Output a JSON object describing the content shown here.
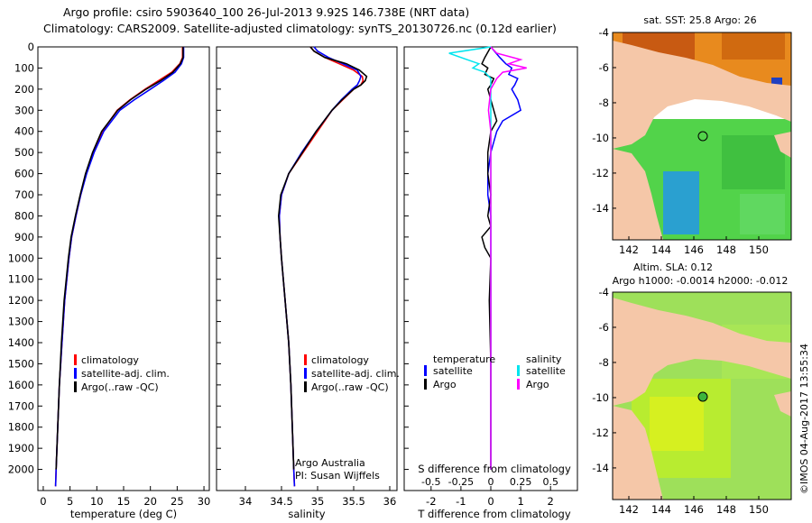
{
  "header": {
    "line1": "Argo profile: csiro 5903640_100 26-Jul-2013 9.92S 146.738E (NRT data)",
    "line2": "Climatology: CARS2009. Satellite-adjusted climatology: synTS_20130726.nc (0.12d earlier)"
  },
  "colors": {
    "climatology": "#ff0000",
    "satellite": "#0000ff",
    "argo": "#000000",
    "sal_satellite": "#00e5ee",
    "sal_argo": "#ff00ff",
    "land": "#f5c7a8",
    "grid": "#000000"
  },
  "chart_data": [
    {
      "type": "line",
      "title": "",
      "xlabel": "temperature (deg C)",
      "ylabel": "",
      "xlim": [
        -1,
        31
      ],
      "ylim": [
        0,
        2100
      ],
      "xticks": [
        "0",
        "5",
        "10",
        "15",
        "20",
        "25",
        "30"
      ],
      "yticks": [
        "0",
        "100",
        "200",
        "300",
        "400",
        "500",
        "600",
        "700",
        "800",
        "900",
        "1000",
        "1100",
        "1200",
        "1300",
        "1400",
        "1500",
        "1600",
        "1700",
        "1800",
        "1900",
        "2000"
      ],
      "legend": [
        "climatology",
        "satellite-adj. clim.",
        "Argo(..raw -QC)"
      ],
      "series": [
        {
          "name": "climatology",
          "depth": [
            0,
            50,
            80,
            120,
            160,
            200,
            250,
            300,
            400,
            500,
            600,
            700,
            800,
            900,
            1000,
            1200,
            1400,
            1600,
            1800,
            2000,
            2080
          ],
          "values": [
            26.0,
            26.0,
            25.5,
            24.0,
            21.5,
            19.0,
            16.2,
            13.8,
            11.0,
            9.4,
            8.0,
            7.0,
            6.1,
            5.3,
            4.8,
            4.0,
            3.5,
            3.0,
            2.7,
            2.4,
            2.3
          ]
        },
        {
          "name": "satellite-adj. clim.",
          "depth": [
            0,
            50,
            80,
            120,
            160,
            200,
            250,
            300,
            400,
            500,
            600,
            700,
            800,
            900,
            1000,
            1200,
            1400,
            1600,
            1800,
            2000,
            2080
          ],
          "values": [
            26.2,
            26.2,
            25.8,
            24.6,
            22.4,
            20.0,
            17.0,
            14.3,
            11.3,
            9.5,
            8.1,
            7.0,
            6.1,
            5.3,
            4.8,
            4.0,
            3.5,
            3.0,
            2.7,
            2.4,
            2.3
          ]
        },
        {
          "name": "Argo(..raw -QC)",
          "depth": [
            0,
            50,
            80,
            120,
            160,
            200,
            250,
            300,
            400,
            500,
            600,
            700,
            800,
            900,
            1000,
            1200,
            1400,
            1600,
            1800,
            2000
          ],
          "values": [
            26.1,
            26.1,
            25.6,
            24.2,
            21.9,
            19.2,
            16.3,
            13.9,
            10.9,
            9.2,
            7.9,
            6.9,
            6.0,
            5.2,
            4.7,
            3.9,
            3.4,
            3.0,
            2.7,
            2.4
          ]
        }
      ]
    },
    {
      "type": "line",
      "title": "",
      "xlabel": "salinity",
      "ylabel": "",
      "xlim": [
        33.6,
        36.1
      ],
      "ylim": [
        0,
        2100
      ],
      "xticks": [
        "34",
        "34.5",
        "35",
        "35.5",
        "36"
      ],
      "legend": [
        "climatology",
        "satellite-adj. clim.",
        "Argo(..raw -QC)"
      ],
      "annotations": [
        "Argo Australia",
        "PI: Susan Wijffels"
      ],
      "series": [
        {
          "name": "climatology",
          "depth": [
            0,
            20,
            50,
            80,
            110,
            140,
            160,
            180,
            200,
            250,
            300,
            400,
            500,
            600,
            700,
            800,
            900,
            1000,
            1200,
            1400,
            1600,
            1800,
            2000,
            2080
          ],
          "values": [
            34.9,
            34.95,
            35.1,
            35.3,
            35.5,
            35.62,
            35.63,
            35.6,
            35.5,
            35.35,
            35.2,
            35.0,
            34.8,
            34.6,
            34.5,
            34.47,
            34.48,
            34.5,
            34.55,
            34.6,
            34.63,
            34.65,
            34.67,
            34.68
          ]
        },
        {
          "name": "satellite-adj. clim.",
          "depth": [
            0,
            20,
            50,
            80,
            110,
            140,
            160,
            180,
            200,
            250,
            300,
            400,
            500,
            600,
            700,
            800,
            900,
            1000,
            1200,
            1400,
            1600,
            1800,
            2000,
            2080
          ],
          "values": [
            34.95,
            35.0,
            35.15,
            35.35,
            35.55,
            35.6,
            35.58,
            35.55,
            35.48,
            35.33,
            35.2,
            34.98,
            34.78,
            34.6,
            34.5,
            34.47,
            34.48,
            34.5,
            34.55,
            34.6,
            34.63,
            34.65,
            34.67,
            34.68
          ]
        },
        {
          "name": "Argo(..raw -QC)",
          "depth": [
            0,
            20,
            50,
            80,
            110,
            140,
            160,
            180,
            200,
            250,
            300,
            400,
            500,
            600,
            700,
            800,
            900,
            1000,
            1200,
            1400,
            1600,
            1800,
            2000
          ],
          "values": [
            34.9,
            34.95,
            35.1,
            35.4,
            35.58,
            35.68,
            35.66,
            35.6,
            35.5,
            35.34,
            35.2,
            34.98,
            34.79,
            34.6,
            34.49,
            34.46,
            34.48,
            34.5,
            34.55,
            34.6,
            34.63,
            34.65,
            34.67
          ]
        }
      ]
    },
    {
      "type": "line",
      "title": "",
      "xlabel": "T difference from climatology",
      "xlabel_top": "S difference from climatology",
      "xlim": [
        -2.9,
        2.9
      ],
      "ylim": [
        0,
        2100
      ],
      "xticks": [
        "-2",
        "-1",
        "0",
        "1",
        "2"
      ],
      "xticks_top": [
        "-0.5",
        "-0.25",
        "0",
        "0.25",
        "0.5"
      ],
      "legend_left_title": "temperature",
      "legend_right_title": "salinity",
      "legend": [
        "satellite",
        "Argo",
        "satellite",
        "Argo"
      ],
      "series": [
        {
          "name": "temperature satellite",
          "depth": [
            0,
            50,
            80,
            100,
            130,
            150,
            180,
            200,
            250,
            300,
            350,
            400,
            500,
            600,
            700,
            800,
            900,
            1000,
            1200,
            1500,
            1800,
            2000
          ],
          "values": [
            0.0,
            0.3,
            0.5,
            0.7,
            0.6,
            0.9,
            0.8,
            0.7,
            0.9,
            1.0,
            0.4,
            0.2,
            0.0,
            -0.1,
            -0.1,
            0.0,
            0.0,
            0.0,
            0.0,
            0.0,
            0.0,
            0.0
          ]
        },
        {
          "name": "temperature Argo",
          "depth": [
            0,
            50,
            80,
            100,
            130,
            150,
            180,
            200,
            250,
            300,
            350,
            400,
            500,
            600,
            700,
            800,
            850,
            900,
            950,
            1000,
            1200,
            1500,
            1800,
            2000
          ],
          "values": [
            0.0,
            -0.2,
            -0.3,
            -0.1,
            -0.2,
            0.1,
            0.0,
            -0.1,
            0.0,
            0.1,
            0.2,
            0.0,
            -0.1,
            -0.1,
            0.0,
            -0.1,
            0.0,
            -0.3,
            -0.2,
            0.0,
            -0.05,
            0.0,
            0.0,
            0.0
          ]
        },
        {
          "name": "salinity satellite",
          "depth": [
            0,
            30,
            60,
            80,
            100,
            120,
            150,
            200,
            300,
            400,
            500,
            700,
            900,
            1200,
            1500,
            1800,
            2000
          ],
          "values": [
            0.0,
            -0.35,
            -0.2,
            -0.1,
            -0.15,
            -0.05,
            0.0,
            0.0,
            0.0,
            0.0,
            0.0,
            0.0,
            0.0,
            0.0,
            0.0,
            0.0,
            0.0
          ]
        },
        {
          "name": "salinity Argo",
          "depth": [
            0,
            30,
            60,
            80,
            100,
            120,
            150,
            200,
            300,
            400,
            500,
            700,
            900,
            1200,
            1500,
            1800,
            2000
          ],
          "values": [
            0.0,
            0.05,
            0.25,
            0.15,
            0.3,
            0.1,
            0.05,
            0.0,
            -0.02,
            0.0,
            0.0,
            0.0,
            0.0,
            0.0,
            0.0,
            0.0,
            0.0
          ]
        }
      ]
    },
    {
      "type": "heatmap",
      "title": "sat. SST: 25.8 Argo: 26",
      "xlim": [
        141,
        152
      ],
      "ylim": [
        -15.8,
        -4
      ],
      "xticks": [
        "142",
        "144",
        "146",
        "148",
        "150"
      ],
      "yticks": [
        "-4",
        "-6",
        "-8",
        "-10",
        "-12",
        "-14"
      ],
      "marker": {
        "lon": 146.738,
        "lat": -9.92
      }
    },
    {
      "type": "heatmap",
      "title_line1": "Altim. SLA: 0.12",
      "title_line2": "Argo h1000: -0.0014 h2000: -0.012",
      "xlim": [
        141,
        152
      ],
      "ylim": [
        -15.8,
        -4
      ],
      "xticks": [
        "142",
        "144",
        "146",
        "148",
        "150"
      ],
      "yticks": [
        "-4",
        "-6",
        "-8",
        "-10",
        "-12",
        "-14"
      ],
      "marker": {
        "lon": 146.738,
        "lat": -9.92
      }
    }
  ],
  "credit": "©IMOS 04-Aug-2017 13:55:34"
}
